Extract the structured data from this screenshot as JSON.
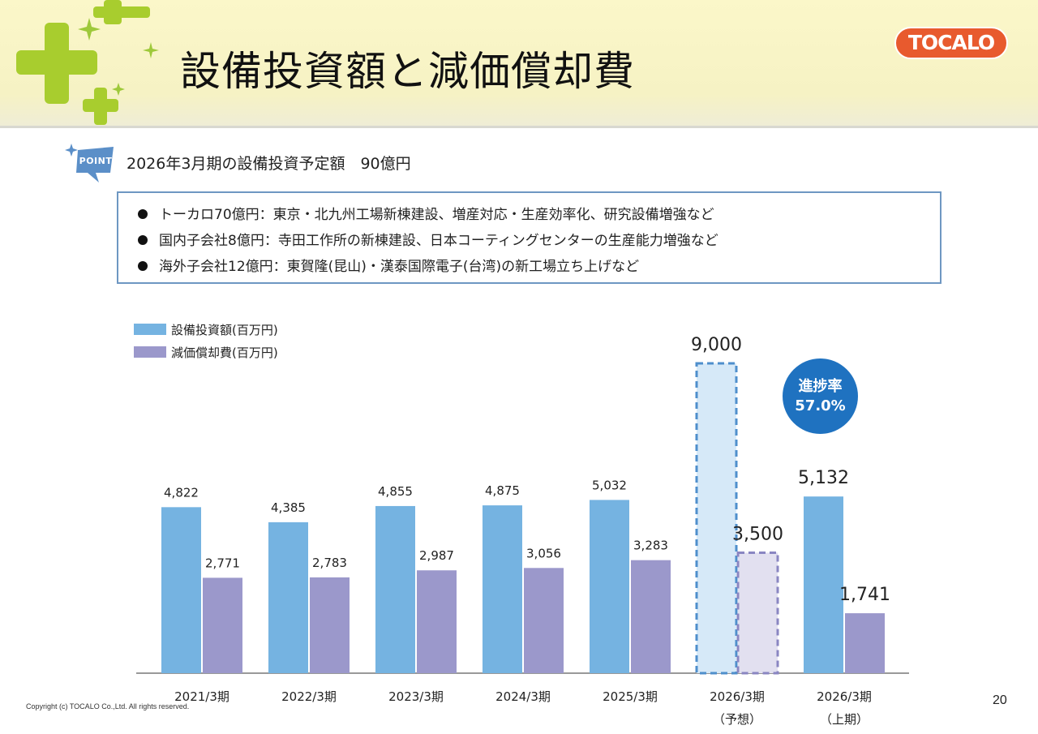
{
  "header": {
    "title": "設備投資額と減価償却費",
    "logo_text": "TOCALO"
  },
  "point": {
    "badge": "POINT",
    "text": "2026年3月期の設備投資予定額　90億円"
  },
  "info": {
    "lines": [
      "トーカロ70億円：東京・北九州工場新棟建設、増産対応・生産効率化、研究設備増強など",
      "国内子会社8億円：寺田工作所の新棟建設、日本コーティングセンターの生産能力増強など",
      "海外子会社12億円：東賀隆(昆山)・漢泰国際電子(台湾)の新工場立ち上げなど"
    ]
  },
  "legend": {
    "capex": "設備投資額(百万円)",
    "depreciation": "減価償却費(百万円)"
  },
  "progress": {
    "label": "進捗率",
    "value": "57.0%"
  },
  "colors": {
    "capex": "#75b3e1",
    "depreciation": "#9b98cb",
    "capex_forecast_fill": "#d6e9f8",
    "capex_forecast_border": "#4f8fcc",
    "dep_forecast_fill": "#e2e0f0",
    "dep_forecast_border": "#8a86c2",
    "progress_circle": "#1f72c0"
  },
  "chart_data": {
    "type": "bar",
    "categories": [
      "2021/3期",
      "2022/3期",
      "2023/3期",
      "2024/3期",
      "2025/3期",
      "2026/3期",
      "2026/3期"
    ],
    "category_sublabels": [
      "",
      "",
      "",
      "",
      "",
      "（予想）",
      "（上期）"
    ],
    "series": [
      {
        "name": "設備投資額(百万円)",
        "values": [
          4822,
          4385,
          4855,
          4875,
          5032,
          9000,
          5132
        ],
        "labels": [
          "4,822",
          "4,385",
          "4,855",
          "4,875",
          "5,032",
          "9,000",
          "5,132"
        ]
      },
      {
        "name": "減価償却費(百万円)",
        "values": [
          2771,
          2783,
          2987,
          3056,
          3283,
          3500,
          1741
        ],
        "labels": [
          "2,771",
          "2,783",
          "2,987",
          "3,056",
          "3,283",
          "3,500",
          "1,741"
        ]
      }
    ],
    "forecast_index": 5,
    "ylim": [
      0,
      9000
    ],
    "grid": false,
    "legend_position": "top-left"
  },
  "footer": {
    "copyright": "Copyright (c) TOCALO Co.,Ltd. All rights reserved.",
    "page": "20"
  }
}
